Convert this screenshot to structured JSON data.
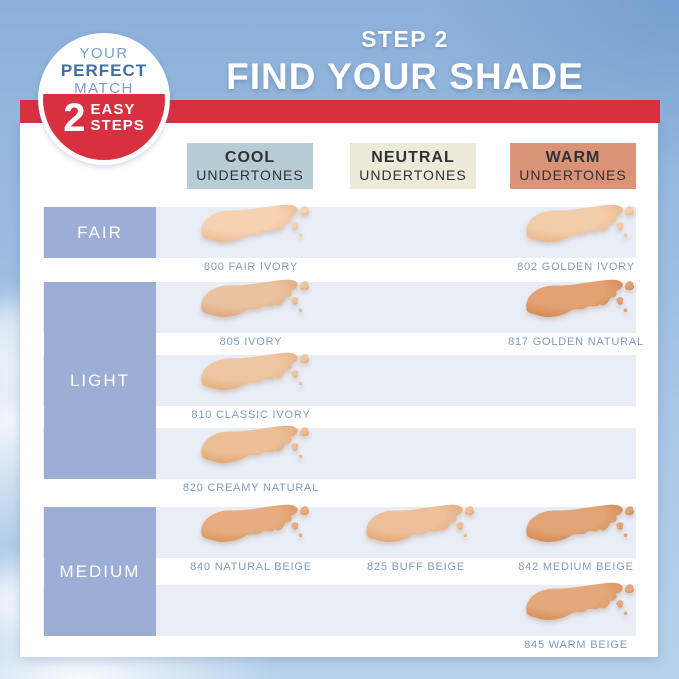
{
  "badge": {
    "your": "YOUR",
    "perfect": "PERFECT",
    "match": "MATCH",
    "number": "2",
    "easy": "EASY",
    "steps": "STEPS"
  },
  "header": {
    "step": "STEP 2",
    "title": "FIND YOUR SHADE"
  },
  "columns": [
    {
      "name": "COOL",
      "sub": "UNDERTONES",
      "bg": "#b7ccd4"
    },
    {
      "name": "NEUTRAL",
      "sub": "UNDERTONES",
      "bg": "#edead9"
    },
    {
      "name": "WARM",
      "sub": "UNDERTONES",
      "bg": "#db9378"
    }
  ],
  "row_groups": [
    {
      "label": "FAIR"
    },
    {
      "label": "LIGHT"
    },
    {
      "label": "MEDIUM"
    }
  ],
  "shades": [
    {
      "row": 0,
      "col": 0,
      "label": "800 FAIR IVORY",
      "base": "#f6d2b2",
      "edge": "#eab083"
    },
    {
      "row": 0,
      "col": 2,
      "label": "802 GOLDEN IVORY",
      "base": "#f2cda9",
      "edge": "#e6ab7a"
    },
    {
      "row": 1,
      "col": 0,
      "label": "805 IVORY",
      "base": "#e9c2a0",
      "edge": "#d9a06f"
    },
    {
      "row": 1,
      "col": 2,
      "label": "817 GOLDEN NATURAL",
      "base": "#e2a273",
      "edge": "#cf7f46"
    },
    {
      "row": 2,
      "col": 0,
      "label": "810 CLASSIC IVORY",
      "base": "#eec6a1",
      "edge": "#dfa471"
    },
    {
      "row": 3,
      "col": 0,
      "label": "820 CREAMY NATURAL",
      "base": "#edbf97",
      "edge": "#dd9c66"
    },
    {
      "row": 4,
      "col": 0,
      "label": "840 NATURAL BEIGE",
      "base": "#e7ad80",
      "edge": "#d68c52"
    },
    {
      "row": 4,
      "col": 1,
      "label": "825 BUFF BEIGE",
      "base": "#eec09a",
      "edge": "#df9f67"
    },
    {
      "row": 4,
      "col": 2,
      "label": "842 MEDIUM BEIGE",
      "base": "#e1a476",
      "edge": "#cf8146"
    },
    {
      "row": 5,
      "col": 2,
      "label": "845 WARM BEIGE",
      "base": "#e3a97c",
      "edge": "#d2854a"
    }
  ],
  "colors": {
    "red": "#d93040",
    "band": "#e9edf6",
    "row_label_bg": "#9cadd6",
    "shade_label_text": "#7e9cbc",
    "header_text": "#2e3237",
    "badge_blue_light": "#7ba1ca",
    "badge_blue_dark": "#40709f",
    "card_bg": "#ffffff"
  }
}
